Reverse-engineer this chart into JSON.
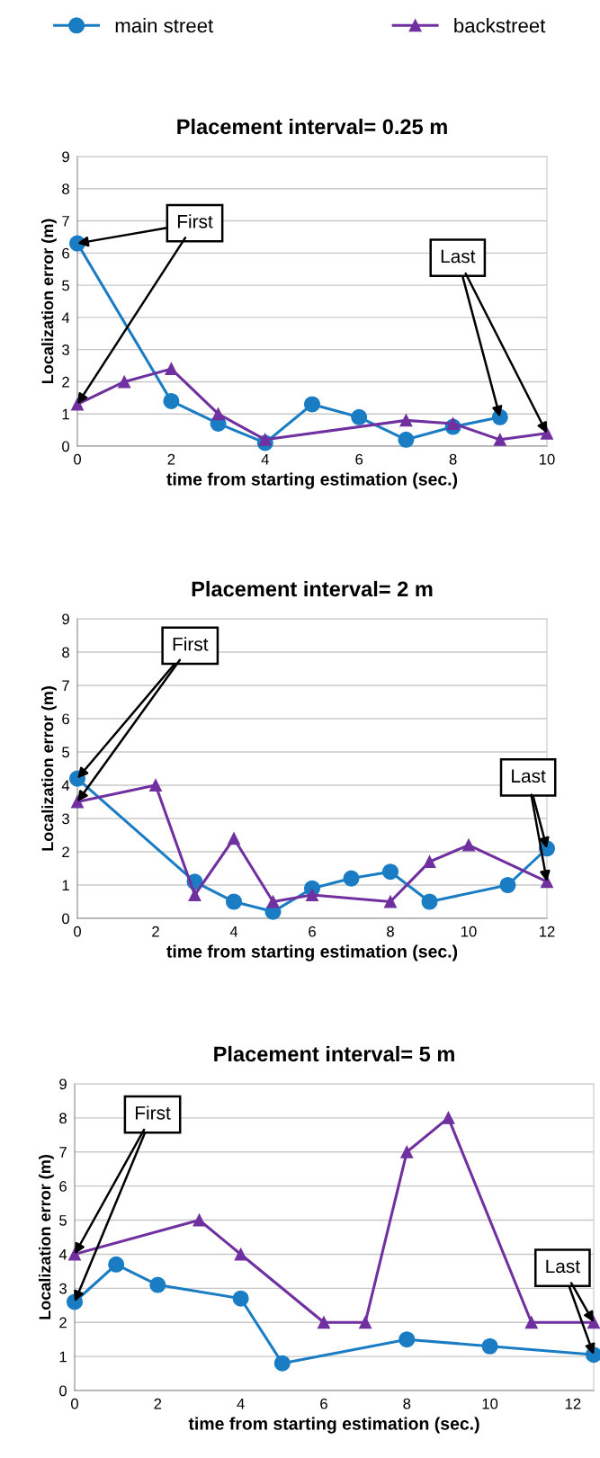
{
  "chart_data": [
    {
      "type": "line",
      "title": "Placement interval= 0.25 m",
      "xlabel": "time from starting estimation (sec.)",
      "ylabel": "Localization error (m)",
      "xlim": [
        0,
        10
      ],
      "xticks": [
        0,
        2,
        4,
        6,
        8,
        10
      ],
      "ylim": [
        0,
        9
      ],
      "yticks": [
        0,
        1,
        2,
        3,
        4,
        5,
        6,
        7,
        8,
        9
      ],
      "grid": "y",
      "legend": "top",
      "series": [
        {
          "name": "main street",
          "color": "#1a7dc4",
          "marker": "circle",
          "x": [
            0,
            2,
            3,
            4,
            5,
            6,
            7,
            8,
            9
          ],
          "values": [
            6.3,
            1.4,
            0.7,
            0.1,
            1.3,
            0.9,
            0.2,
            0.6,
            0.9
          ]
        },
        {
          "name": "backstreet",
          "color": "#7030a0",
          "marker": "triangle",
          "x": [
            0,
            1,
            2,
            3,
            4,
            7,
            8,
            9,
            10
          ],
          "values": [
            1.3,
            2.0,
            2.4,
            1.0,
            0.2,
            0.8,
            0.7,
            0.2,
            0.4
          ]
        }
      ],
      "annotations": [
        {
          "text": "First",
          "x": 0,
          "y": 6.3
        },
        {
          "text": "Last",
          "x": 9,
          "y": 0.9
        }
      ]
    },
    {
      "type": "line",
      "title": "Placement interval= 2 m",
      "xlabel": "time from starting estimation (sec.)",
      "ylabel": "Localization error (m)",
      "xlim": [
        0,
        12
      ],
      "xticks": [
        0,
        2,
        4,
        6,
        8,
        10,
        12
      ],
      "ylim": [
        0,
        9
      ],
      "yticks": [
        0,
        1,
        2,
        3,
        4,
        5,
        6,
        7,
        8,
        9
      ],
      "grid": "y",
      "series": [
        {
          "color": "#1a7dc4",
          "marker": "circle",
          "x": [
            0,
            3,
            4,
            5,
            6,
            7,
            8,
            9,
            11,
            12
          ],
          "values": [
            4.2,
            1.1,
            0.5,
            0.2,
            0.9,
            1.2,
            1.4,
            0.5,
            1.0,
            2.1
          ]
        },
        {
          "color": "#7030a0",
          "marker": "triangle",
          "x": [
            0,
            2,
            3,
            4,
            5,
            6,
            8,
            9,
            10,
            12
          ],
          "values": [
            3.5,
            4.0,
            0.7,
            2.4,
            0.5,
            0.7,
            0.5,
            1.7,
            2.2,
            1.1
          ]
        }
      ],
      "annotations": [
        {
          "text": "First",
          "x": 0,
          "y": 4.2
        },
        {
          "text": "Last",
          "x": 12,
          "y": 2.1
        }
      ]
    },
    {
      "type": "line",
      "title": "Placement interval= 5 m",
      "xlabel": "time from starting estimation (sec.)",
      "ylabel": "Localization error (m)",
      "xlim": [
        0,
        12.5
      ],
      "xticks": [
        0,
        2,
        4,
        6,
        8,
        10,
        12
      ],
      "ylim": [
        0,
        9
      ],
      "yticks": [
        0,
        1,
        2,
        3,
        4,
        5,
        6,
        7,
        8,
        9
      ],
      "grid": "y",
      "series": [
        {
          "color": "#1a7dc4",
          "marker": "circle",
          "x": [
            0,
            1,
            2,
            4,
            5,
            8,
            10,
            12.5
          ],
          "values": [
            2.6,
            3.7,
            3.1,
            2.7,
            0.8,
            1.5,
            1.3,
            1.05
          ]
        },
        {
          "color": "#7030a0",
          "marker": "triangle",
          "x": [
            0,
            3,
            4,
            6,
            7,
            8,
            9,
            11,
            12.5
          ],
          "values": [
            4.0,
            5.0,
            4.0,
            2.0,
            2.0,
            7.0,
            8.0,
            2.0,
            2.0
          ]
        }
      ],
      "annotations": [
        {
          "text": "First",
          "x": 0,
          "y": 2.6
        },
        {
          "text": "Last",
          "x": 12.5,
          "y": 1.05
        }
      ]
    }
  ]
}
